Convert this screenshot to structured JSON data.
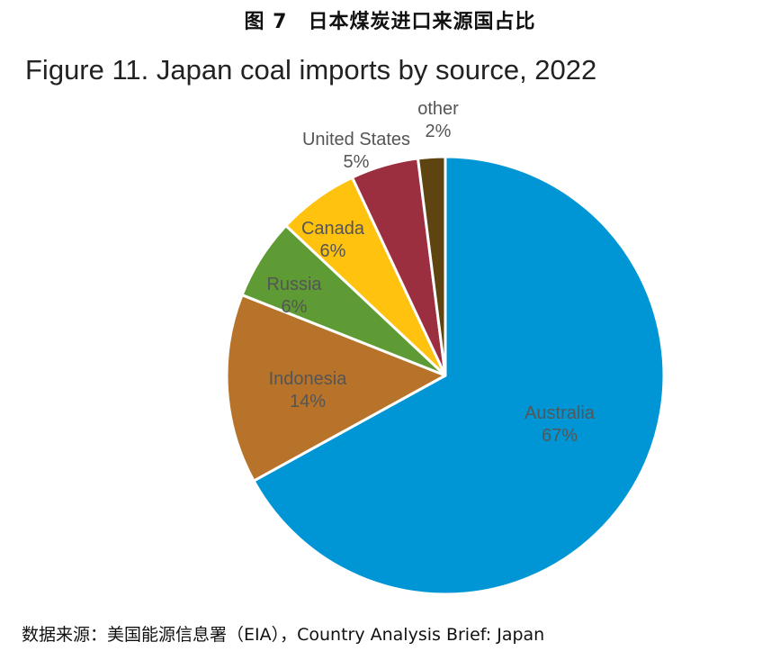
{
  "caption": "图 7　日本煤炭进口来源国占比",
  "source_note": "数据来源：美国能源信息署（EIA），Country Analysis Brief: Japan",
  "chart_data": {
    "type": "pie",
    "title": "Figure 11. Japan coal imports by source, 2022",
    "slices": [
      {
        "label": "Australia",
        "value": 67,
        "value_label": "67%",
        "color": "#0096d6"
      },
      {
        "label": "Indonesia",
        "value": 14,
        "value_label": "14%",
        "color": "#b8732b"
      },
      {
        "label": "Russia",
        "value": 6,
        "value_label": "6%",
        "color": "#5f9b34"
      },
      {
        "label": "Canada",
        "value": 6,
        "value_label": "6%",
        "color": "#ffc20e"
      },
      {
        "label": "United States",
        "value": 5,
        "value_label": "5%",
        "color": "#9c2f3f"
      },
      {
        "label": "other",
        "value": 2,
        "value_label": "2%",
        "color": "#5e4410"
      }
    ],
    "label_color": "#555555"
  }
}
